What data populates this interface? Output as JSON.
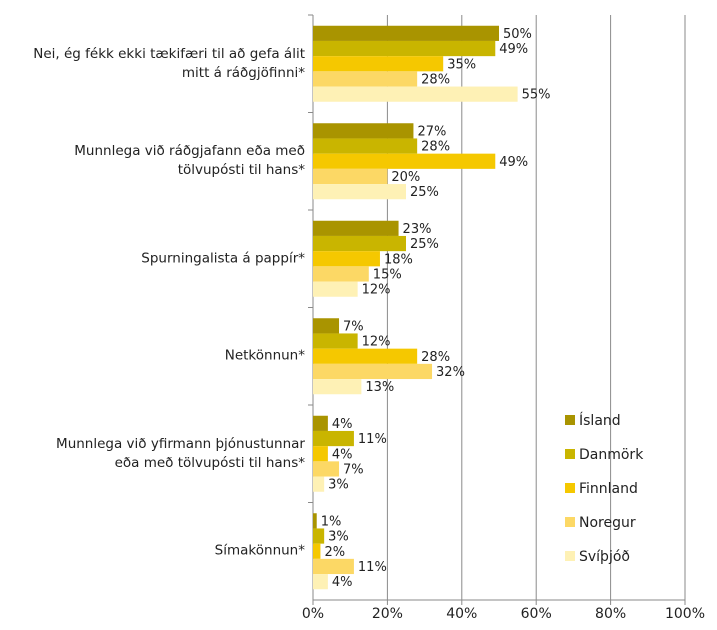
{
  "chart_data": {
    "type": "barh",
    "categories": [
      "Nei, ég fékk ekki tækifæri til að gefa álit\nmitt á ráðgjöfinni*",
      "Munnlega við ráðgjafann eða með\ntölvupósti til hans*",
      "Spurningalista á pappír*",
      "Netkönnun*",
      "Munnlega við yfirmann þjónustunnar\neða með tölvupósti til hans*",
      "Símakönnun*"
    ],
    "series": [
      {
        "name": "Ísland",
        "color": "#a99400",
        "values": [
          50,
          27,
          23,
          7,
          4,
          1
        ],
        "value_labels": [
          "50%",
          "27%",
          "23%",
          "7%",
          "4%",
          "1%"
        ]
      },
      {
        "name": "Danmörk",
        "color": "#c9b500",
        "values": [
          49,
          28,
          25,
          12,
          11,
          3
        ],
        "value_labels": [
          "49%",
          "28%",
          "25%",
          "12%",
          "11%",
          "3%"
        ]
      },
      {
        "name": "Finnland",
        "color": "#f5c800",
        "values": [
          35,
          49,
          18,
          28,
          4,
          2
        ],
        "value_labels": [
          "35%",
          "49%",
          "18%",
          "28%",
          "4%",
          "2%"
        ]
      },
      {
        "name": "Noregur",
        "color": "#fcd865",
        "values": [
          28,
          20,
          15,
          32,
          7,
          11
        ],
        "value_labels": [
          "28%",
          "20%",
          "15%",
          "32%",
          "7%",
          "11%"
        ]
      },
      {
        "name": "Svíþjóð",
        "color": "#fef1b5",
        "values": [
          55,
          25,
          12,
          13,
          3,
          4
        ],
        "value_labels": [
          "55%",
          "25%",
          "12%",
          "13%",
          "3%",
          "4%"
        ]
      }
    ],
    "xlim": [
      0,
      100
    ],
    "xticks": [
      {
        "value": 0,
        "label": "0%"
      },
      {
        "value": 20,
        "label": "20%"
      },
      {
        "value": 40,
        "label": "40%"
      },
      {
        "value": 60,
        "label": "60%"
      },
      {
        "value": 80,
        "label": "80%"
      },
      {
        "value": 100,
        "label": "100%"
      }
    ],
    "grid": true,
    "legend": "lower right"
  }
}
